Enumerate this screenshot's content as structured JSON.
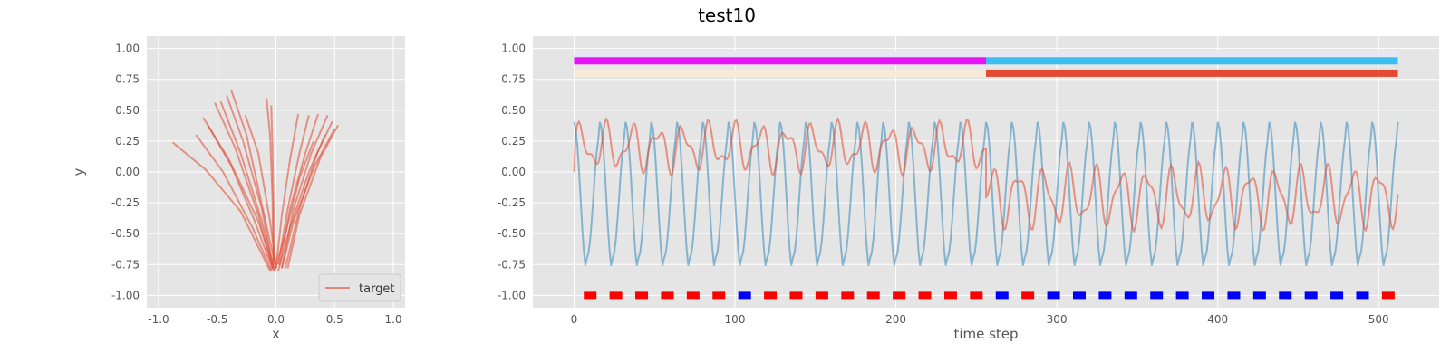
{
  "figure_title": "test10",
  "colors": {
    "axes_bg": "#E5E5E5",
    "grid": "#FFFFFF",
    "target": "#E24A33",
    "blue_series": "#348ABD",
    "tick_text": "#555555",
    "marker_red": "#FF0000",
    "marker_blue": "#0000FF"
  },
  "chart_data": [
    {
      "type": "line",
      "xlabel": "x",
      "ylabel": "y",
      "xlim": [
        -1.1,
        1.1
      ],
      "ylim": [
        -1.1,
        1.1
      ],
      "xticks": [
        -1.0,
        -0.5,
        0.0,
        0.5,
        1.0
      ],
      "yticks": [
        -1.0,
        -0.75,
        -0.5,
        -0.25,
        0.0,
        0.25,
        0.5,
        0.75,
        1.0
      ],
      "grid": true,
      "legend": {
        "location": "lower right",
        "entries": [
          "target"
        ]
      },
      "series": [
        {
          "name": "target",
          "color": "#E24A33",
          "strokes": [
            [
              [
                -0.88,
                0.24
              ],
              [
                -0.6,
                0.02
              ],
              [
                -0.3,
                -0.32
              ],
              [
                -0.05,
                -0.8
              ]
            ],
            [
              [
                -0.62,
                0.44
              ],
              [
                -0.4,
                0.1
              ],
              [
                -0.15,
                -0.4
              ],
              [
                -0.02,
                -0.78
              ]
            ],
            [
              [
                -0.52,
                0.56
              ],
              [
                -0.35,
                0.2
              ],
              [
                -0.15,
                -0.35
              ],
              [
                -0.03,
                -0.78
              ]
            ],
            [
              [
                -0.47,
                0.57
              ],
              [
                -0.3,
                0.15
              ],
              [
                -0.12,
                -0.4
              ],
              [
                -0.01,
                -0.8
              ]
            ],
            [
              [
                -0.38,
                0.66
              ],
              [
                -0.25,
                0.3
              ],
              [
                -0.1,
                -0.35
              ],
              [
                0.0,
                -0.78
              ]
            ],
            [
              [
                -0.26,
                0.46
              ],
              [
                -0.15,
                0.15
              ],
              [
                -0.05,
                -0.4
              ],
              [
                0.0,
                -0.75
              ]
            ],
            [
              [
                -0.08,
                0.6
              ],
              [
                -0.05,
                0.3
              ],
              [
                -0.03,
                -0.2
              ],
              [
                -0.02,
                -0.75
              ]
            ],
            [
              [
                -0.04,
                0.54
              ],
              [
                -0.03,
                0.2
              ],
              [
                -0.02,
                -0.3
              ],
              [
                -0.02,
                -0.72
              ]
            ],
            [
              [
                0.19,
                0.47
              ],
              [
                0.12,
                0.1
              ],
              [
                0.05,
                -0.35
              ],
              [
                0.0,
                -0.78
              ]
            ],
            [
              [
                0.28,
                0.46
              ],
              [
                0.2,
                0.15
              ],
              [
                0.1,
                -0.3
              ],
              [
                0.02,
                -0.75
              ]
            ],
            [
              [
                0.36,
                0.47
              ],
              [
                0.25,
                0.15
              ],
              [
                0.12,
                -0.3
              ],
              [
                0.03,
                -0.76
              ]
            ],
            [
              [
                0.44,
                0.46
              ],
              [
                0.3,
                0.15
              ],
              [
                0.15,
                -0.3
              ],
              [
                0.05,
                -0.78
              ]
            ],
            [
              [
                0.48,
                0.41
              ],
              [
                0.35,
                0.15
              ],
              [
                0.2,
                -0.3
              ],
              [
                0.08,
                -0.78
              ]
            ],
            [
              [
                0.53,
                0.38
              ],
              [
                0.38,
                0.12
              ],
              [
                0.2,
                -0.35
              ],
              [
                0.1,
                -0.78
              ]
            ],
            [
              [
                0.5,
                0.35
              ],
              [
                0.33,
                0.05
              ],
              [
                0.15,
                -0.4
              ],
              [
                0.05,
                -0.78
              ]
            ],
            [
              [
                0.42,
                0.3
              ],
              [
                0.28,
                0.0
              ],
              [
                0.12,
                -0.45
              ],
              [
                0.02,
                -0.8
              ]
            ],
            [
              [
                0.32,
                0.25
              ],
              [
                0.2,
                -0.05
              ],
              [
                0.08,
                -0.5
              ],
              [
                -0.01,
                -0.8
              ]
            ],
            [
              [
                -0.68,
                0.3
              ],
              [
                -0.45,
                0.0
              ],
              [
                -0.2,
                -0.45
              ],
              [
                -0.04,
                -0.8
              ]
            ],
            [
              [
                -0.58,
                0.38
              ],
              [
                -0.38,
                0.05
              ],
              [
                -0.18,
                -0.4
              ],
              [
                -0.03,
                -0.79
              ]
            ],
            [
              [
                -0.42,
                0.62
              ],
              [
                -0.28,
                0.25
              ],
              [
                -0.12,
                -0.3
              ],
              [
                -0.02,
                -0.8
              ]
            ]
          ]
        }
      ]
    },
    {
      "type": "line",
      "xlabel": "time step",
      "ylabel": "",
      "xlim": [
        -25.6,
        537.6
      ],
      "ylim": [
        -1.1,
        1.1
      ],
      "xticks": [
        0,
        100,
        200,
        300,
        400,
        500
      ],
      "yticks": [
        -1.0,
        -0.75,
        -0.5,
        -0.25,
        0.0,
        0.25,
        0.5,
        0.75,
        1.0
      ],
      "grid": true,
      "series": [
        {
          "color": "#348ABD",
          "period": 16,
          "amplitude": 0.55,
          "offset": -0.2,
          "x_range": [
            0,
            512
          ]
        },
        {
          "color": "#E24A33",
          "segments": [
            {
              "x_range": [
                0,
                256
              ],
              "mean": 0.2,
              "swing": 0.15
            },
            {
              "x_range": [
                256,
                512
              ],
              "mean": -0.2,
              "swing": 0.2
            }
          ]
        }
      ],
      "bands": [
        {
          "y": 0.95,
          "color": "#E8E8F5",
          "x_range": [
            0,
            512
          ]
        },
        {
          "y": 0.9,
          "color": "#E514F5",
          "x_range": [
            0,
            256
          ]
        },
        {
          "y": 0.9,
          "color": "#3DBEF0",
          "x_range": [
            256,
            512
          ]
        },
        {
          "y": 0.8,
          "color": "#F7EBD8",
          "x_range": [
            0,
            256
          ]
        },
        {
          "y": 0.8,
          "color": "#E24A33",
          "x_range": [
            256,
            512
          ]
        }
      ],
      "markers": {
        "y": -1.0,
        "period": 16,
        "first_x": 10,
        "colors_by_index": [
          "red",
          "red",
          "red",
          "red",
          "red",
          "red",
          "blue",
          "red",
          "red",
          "red",
          "red",
          "red",
          "red",
          "red",
          "red",
          "red",
          "blue",
          "red",
          "blue",
          "blue",
          "blue",
          "blue",
          "blue",
          "blue",
          "blue",
          "blue",
          "blue",
          "blue",
          "blue",
          "blue",
          "blue",
          "red"
        ]
      }
    }
  ]
}
